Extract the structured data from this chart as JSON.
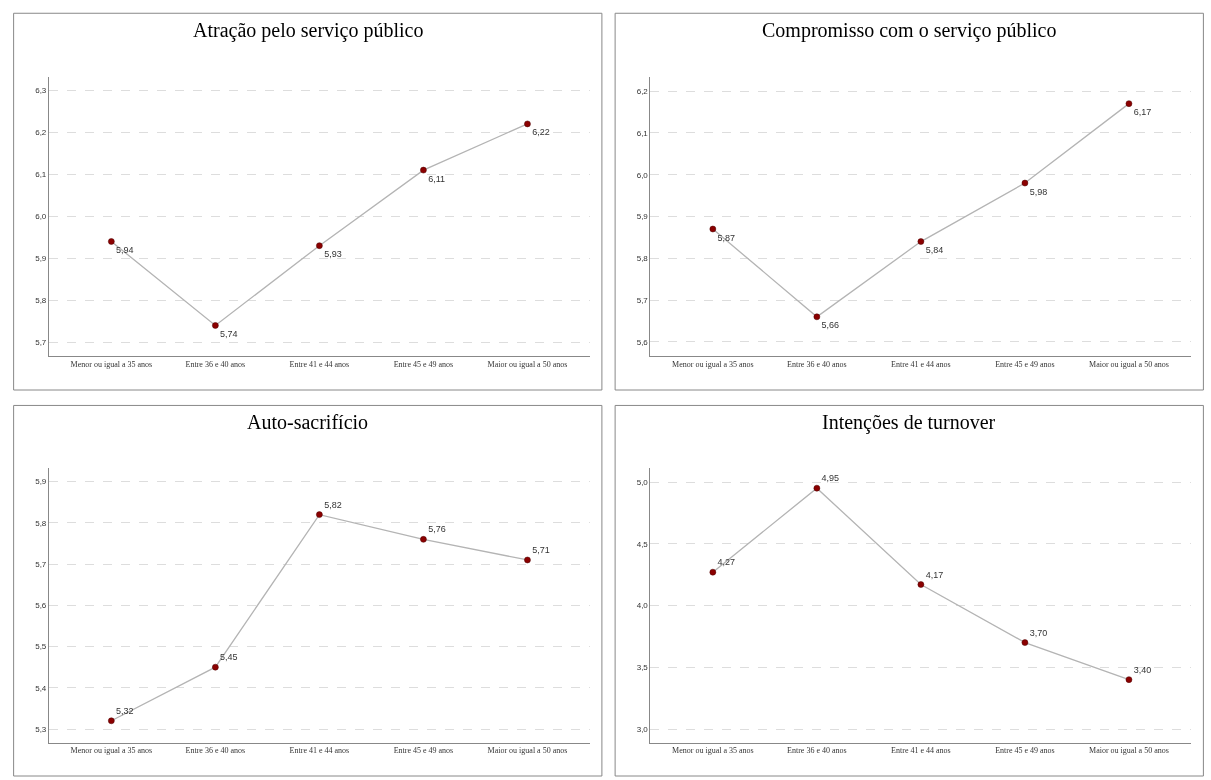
{
  "chart_data": [
    {
      "type": "line",
      "title": "Atração pelo serviço público",
      "categories": [
        "Menor ou igual a 35 anos",
        "Entre 36 e 40 anos",
        "Entre 41 e 44 anos",
        "Entre 45 e 49 anos",
        "Maior ou igual a 50 anos"
      ],
      "series": [
        {
          "color": "#8b0000",
          "values": [
            5.94,
            5.74,
            5.93,
            6.11,
            6.22
          ],
          "value_labels": [
            "5,94",
            "5,74",
            "5,93",
            "6,11",
            "6,22"
          ]
        }
      ],
      "ylim": [
        5.667,
        6.331
      ],
      "yticks": [
        {
          "value": 5.7,
          "label": "5,7"
        },
        {
          "value": 5.8,
          "label": "5,8"
        },
        {
          "value": 5.9,
          "label": "5,9"
        },
        {
          "value": 6.0,
          "label": "6,0"
        },
        {
          "value": 6.1,
          "label": "6,1"
        },
        {
          "value": 6.2,
          "label": "6,2"
        },
        {
          "value": 6.3,
          "label": "6,3"
        }
      ],
      "grid": "y",
      "marker": "circle",
      "line_style": "solid"
    },
    {
      "type": "line",
      "title": "Compromisso com o serviço público",
      "categories": [
        "Menor ou igual a 35 anos",
        "Entre 36 e 40 anos",
        "Entre 41 e 44 anos",
        "Entre 45 e 49 anos",
        "Maior ou igual a 50 anos"
      ],
      "series": [
        {
          "color": "#8b0000",
          "values": [
            5.87,
            5.66,
            5.84,
            5.98,
            6.17
          ],
          "value_labels": [
            "5,87",
            "5,66",
            "5,84",
            "5,98",
            "6,17"
          ]
        }
      ],
      "ylim": [
        5.566,
        6.233
      ],
      "yticks": [
        {
          "value": 5.6,
          "label": "5,6"
        },
        {
          "value": 5.7,
          "label": "5,7"
        },
        {
          "value": 5.8,
          "label": "5,8"
        },
        {
          "value": 5.9,
          "label": "5,9"
        },
        {
          "value": 6.0,
          "label": "6,0"
        },
        {
          "value": 6.1,
          "label": "6,1"
        },
        {
          "value": 6.2,
          "label": "6,2"
        }
      ],
      "grid": "y",
      "marker": "circle",
      "line_style": "solid"
    },
    {
      "type": "line",
      "title": "Auto-sacrifício",
      "categories": [
        "Menor ou igual a 35 anos",
        "Entre 36 e 40 anos",
        "Entre 41 e 44 anos",
        "Entre 45 e 49 anos",
        "Maior ou igual a 50 anos"
      ],
      "series": [
        {
          "color": "#8b0000",
          "values": [
            5.32,
            5.45,
            5.82,
            5.76,
            5.71
          ],
          "value_labels": [
            "5,32",
            "5,45",
            "5,82",
            "5,76",
            "5,71"
          ]
        }
      ],
      "ylim": [
        5.267,
        5.932
      ],
      "yticks": [
        {
          "value": 5.3,
          "label": "5,3"
        },
        {
          "value": 5.4,
          "label": "5,4"
        },
        {
          "value": 5.5,
          "label": "5,5"
        },
        {
          "value": 5.6,
          "label": "5,6"
        },
        {
          "value": 5.7,
          "label": "5,7"
        },
        {
          "value": 5.8,
          "label": "5,8"
        },
        {
          "value": 5.9,
          "label": "5,9"
        }
      ],
      "grid": "y",
      "marker": "circle",
      "line_style": "solid"
    },
    {
      "type": "line",
      "title": "Intenções de turnover",
      "categories": [
        "Menor ou igual a 35 anos",
        "Entre 36 e 40 anos",
        "Entre 41 e 44 anos",
        "Entre 45 e 49 anos",
        "Maior ou igual a 50 anos"
      ],
      "series": [
        {
          "color": "#8b0000",
          "values": [
            4.27,
            4.95,
            4.17,
            3.7,
            3.4
          ],
          "value_labels": [
            "4,27",
            "4,95",
            "4,17",
            "3,70",
            "3,40"
          ]
        }
      ],
      "ylim": [
        2.89,
        5.11
      ],
      "yticks": [
        {
          "value": 3.0,
          "label": "3,0"
        },
        {
          "value": 3.5,
          "label": "3,5"
        },
        {
          "value": 4.0,
          "label": "4,0"
        },
        {
          "value": 4.5,
          "label": "4,5"
        },
        {
          "value": 5.0,
          "label": "5,0"
        }
      ],
      "grid": "y",
      "marker": "circle",
      "line_style": "solid"
    }
  ]
}
